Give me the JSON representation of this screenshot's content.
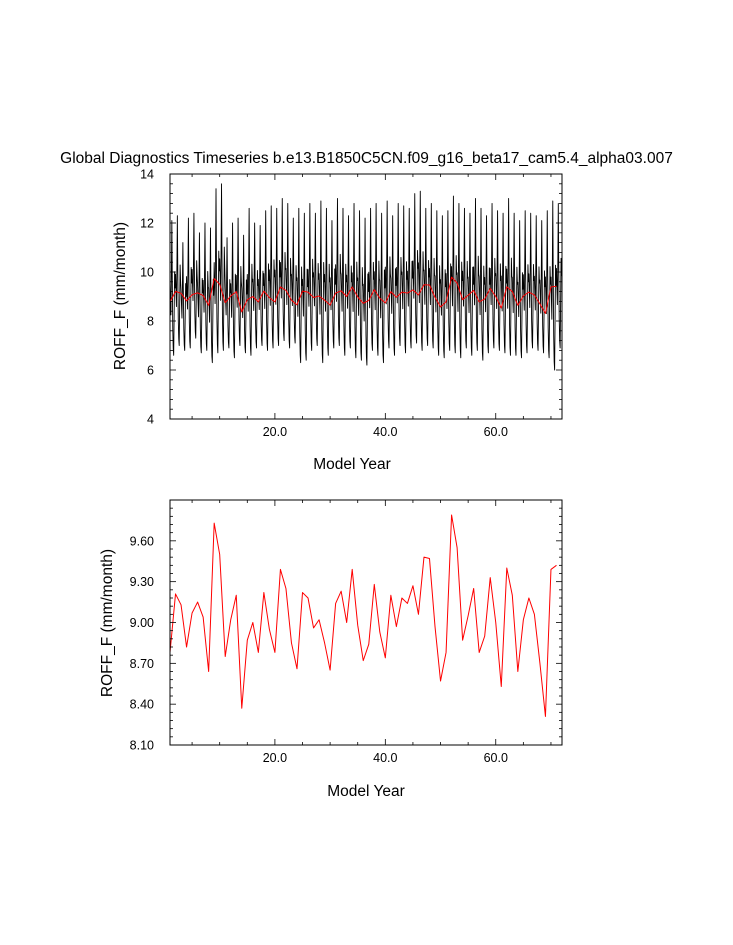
{
  "page_title": "Global Diagnostics Timeseries b.e13.B1850C5CN.f09_g16_beta17_cam5.4_alpha03.007",
  "colors": {
    "monthly": "#000000",
    "annual": "#ff0000",
    "axis": "#000000",
    "background": "#ffffff"
  },
  "chart_data": [
    {
      "type": "line",
      "title": "Global Diagnostics Timeseries b.e13.B1850C5CN.f09_g16_beta17_cam5.4_alpha03.007",
      "xlabel": "Model Year",
      "ylabel": "ROFF_F (mm/month)",
      "xlim": [
        1,
        72
      ],
      "ylim": [
        4,
        14
      ],
      "xticks": [
        20,
        40,
        60
      ],
      "xtick_labels": [
        "20.0",
        "40.0",
        "60.0"
      ],
      "yticks": [
        4,
        6,
        8,
        10,
        12,
        14
      ],
      "ytick_labels": [
        "4",
        "6",
        "8",
        "10",
        "12",
        "14"
      ],
      "grid": false,
      "series": [
        {
          "color": "#000000",
          "sampling": "monthly",
          "x_start": 1,
          "x_step": 0.08333,
          "annual_peaks": [
            12.1,
            12.3,
            11.2,
            12.2,
            12.4,
            11.6,
            12.0,
            11.8,
            13.4,
            13.6,
            11.4,
            12.0,
            12.2,
            11.5,
            12.6,
            12.0,
            11.9,
            12.5,
            12.7,
            12.6,
            13.0,
            12.8,
            12.2,
            12.6,
            12.4,
            12.8,
            12.4,
            12.9,
            12.6,
            12.1,
            13.0,
            12.6,
            12.3,
            12.8,
            12.5,
            12.2,
            12.6,
            12.8,
            12.4,
            12.9,
            12.3,
            12.8,
            12.7,
            12.6,
            13.2,
            13.3,
            12.6,
            12.8,
            12.5,
            12.3,
            12.5,
            13.1,
            12.8,
            12.6,
            12.4,
            13.0,
            12.6,
            12.3,
            12.8,
            12.5,
            12.4,
            13.0,
            12.4,
            12.1,
            12.5,
            12.4,
            12.3,
            12.1,
            12.5,
            12.9,
            12.8,
            12.5
          ],
          "annual_troughs": [
            6.6,
            7.0,
            6.8,
            6.9,
            7.3,
            6.7,
            6.8,
            6.3,
            6.7,
            6.8,
            6.9,
            6.5,
            7.0,
            6.7,
            6.6,
            6.9,
            7.0,
            6.8,
            6.9,
            7.0,
            7.2,
            6.9,
            7.1,
            6.3,
            6.4,
            6.8,
            7.0,
            6.3,
            6.6,
            6.9,
            7.0,
            6.6,
            6.9,
            6.5,
            6.4,
            6.2,
            6.8,
            6.6,
            6.3,
            6.9,
            6.6,
            7.0,
            6.7,
            6.9,
            7.1,
            6.8,
            7.0,
            6.9,
            6.6,
            6.5,
            6.8,
            6.7,
            6.5,
            6.9,
            6.6,
            6.8,
            6.4,
            6.7,
            6.9,
            6.8,
            6.7,
            6.6,
            6.6,
            6.5,
            6.7,
            6.9,
            6.8,
            6.7,
            6.5,
            6.0,
            6.9,
            6.9
          ]
        },
        {
          "color": "#ff0000",
          "sampling": "annual",
          "x_start": 1,
          "x_step": 1,
          "values": [
            8.78,
            9.21,
            9.13,
            8.82,
            9.07,
            9.15,
            9.04,
            8.64,
            9.73,
            9.5,
            8.75,
            9.02,
            9.2,
            8.37,
            8.87,
            9.0,
            8.78,
            9.22,
            8.95,
            8.78,
            9.39,
            9.25,
            8.85,
            8.66,
            9.22,
            9.18,
            8.96,
            9.02,
            8.85,
            8.65,
            9.14,
            9.23,
            9.0,
            9.39,
            8.98,
            8.72,
            8.84,
            9.28,
            8.93,
            8.74,
            9.2,
            8.97,
            9.18,
            9.14,
            9.27,
            9.06,
            9.48,
            9.47,
            8.97,
            8.57,
            8.78,
            9.79,
            9.55,
            8.87,
            9.05,
            9.25,
            8.78,
            8.9,
            9.33,
            9.0,
            8.53,
            9.4,
            9.2,
            8.64,
            9.02,
            9.18,
            9.06,
            8.7,
            8.31,
            9.39,
            9.42
          ]
        }
      ]
    },
    {
      "type": "line",
      "xlabel": "Model Year",
      "ylabel": "ROFF_F (mm/month)",
      "xlim": [
        1,
        72
      ],
      "ylim": [
        8.1,
        9.9
      ],
      "xticks": [
        20,
        40,
        60
      ],
      "xtick_labels": [
        "20.0",
        "40.0",
        "60.0"
      ],
      "yticks": [
        8.1,
        8.4,
        8.7,
        9.0,
        9.3,
        9.6
      ],
      "ytick_labels": [
        "8.10",
        "8.40",
        "8.70",
        "9.00",
        "9.30",
        "9.60"
      ],
      "grid": false,
      "series": [
        {
          "color": "#ff0000",
          "sampling": "annual",
          "x_start": 1,
          "x_step": 1,
          "values": [
            8.78,
            9.21,
            9.13,
            8.82,
            9.07,
            9.15,
            9.04,
            8.64,
            9.73,
            9.5,
            8.75,
            9.02,
            9.2,
            8.37,
            8.87,
            9.0,
            8.78,
            9.22,
            8.95,
            8.78,
            9.39,
            9.25,
            8.85,
            8.66,
            9.22,
            9.18,
            8.96,
            9.02,
            8.85,
            8.65,
            9.14,
            9.23,
            9.0,
            9.39,
            8.98,
            8.72,
            8.84,
            9.28,
            8.93,
            8.74,
            9.2,
            8.97,
            9.18,
            9.14,
            9.27,
            9.06,
            9.48,
            9.47,
            8.97,
            8.57,
            8.78,
            9.79,
            9.55,
            8.87,
            9.05,
            9.25,
            8.78,
            8.9,
            9.33,
            9.0,
            8.53,
            9.4,
            9.2,
            8.64,
            9.02,
            9.18,
            9.06,
            8.7,
            8.31,
            9.39,
            9.42
          ]
        }
      ]
    }
  ]
}
